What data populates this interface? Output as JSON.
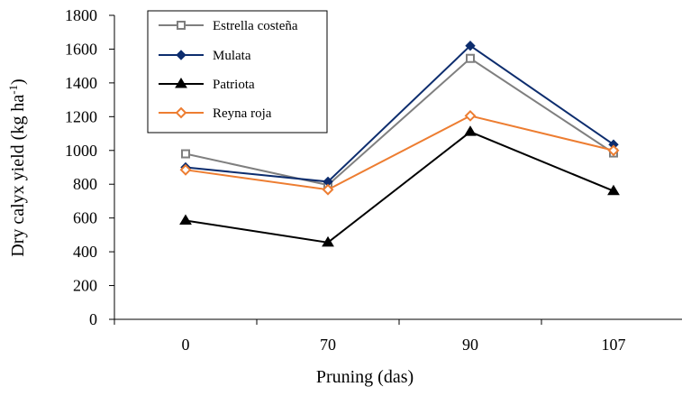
{
  "chart_data": {
    "type": "line",
    "title": "",
    "xlabel": "Pruning (das)",
    "ylabel": "Dry calyx yield (kg ha",
    "ylabel_sup": "-1",
    "ylabel_close": ")",
    "categories": [
      "0",
      "70",
      "90",
      "107"
    ],
    "ylim": [
      0,
      1800
    ],
    "yticks": [
      0,
      200,
      400,
      600,
      800,
      1000,
      1200,
      1400,
      1600,
      1800
    ],
    "grid": false,
    "legend_position": "top-left",
    "series": [
      {
        "name": "Estrella costeña",
        "values": [
          980,
          795,
          1545,
          985
        ],
        "color": "#7f7f7f",
        "marker": "square-open"
      },
      {
        "name": "Mulata",
        "values": [
          900,
          815,
          1620,
          1035
        ],
        "color": "#0d2d6e",
        "marker": "diamond"
      },
      {
        "name": "Patriota",
        "values": [
          585,
          455,
          1110,
          760
        ],
        "color": "#000000",
        "marker": "triangle"
      },
      {
        "name": "Reyna roja",
        "values": [
          885,
          768,
          1205,
          1000
        ],
        "color": "#ed7d31",
        "marker": "diamond-open"
      }
    ]
  }
}
